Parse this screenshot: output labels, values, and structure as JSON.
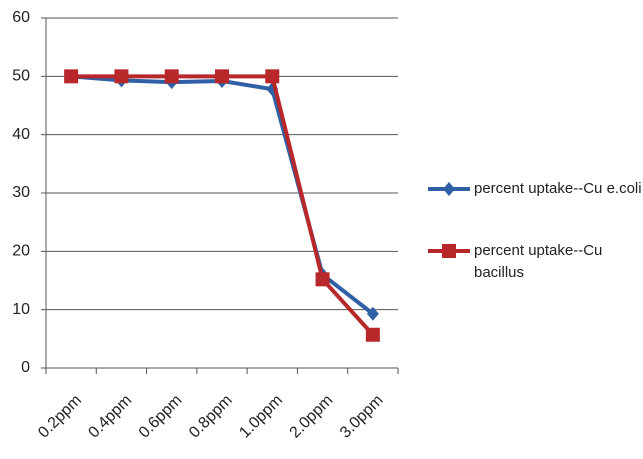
{
  "chart_data": {
    "type": "line",
    "categories": [
      "0.2ppm",
      "0.4ppm",
      "0.6ppm",
      "0.8ppm",
      "1.0ppm",
      "2.0ppm",
      "3.0ppm"
    ],
    "series": [
      {
        "name": "percent uptake--Cu e.coli",
        "color": "#2f5fa5",
        "marker": "diamond",
        "values": [
          50,
          49.3,
          49,
          49.2,
          47.8,
          16,
          9.3
        ]
      },
      {
        "name": "percent uptake--Cu bacillus",
        "color": "#b8282a",
        "marker": "square",
        "values": [
          50,
          50,
          50,
          50,
          50,
          15.2,
          5.7
        ]
      }
    ],
    "ylim": [
      0,
      60
    ],
    "yticks": [
      0,
      10,
      20,
      30,
      40,
      50,
      60
    ],
    "grid": true,
    "legend": "right"
  }
}
